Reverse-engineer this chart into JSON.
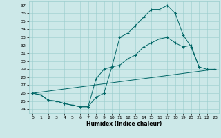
{
  "xlabel": "Humidex (Indice chaleur)",
  "xlim": [
    -0.5,
    23.5
  ],
  "ylim": [
    23.5,
    37.5
  ],
  "yticks": [
    24,
    25,
    26,
    27,
    28,
    29,
    30,
    31,
    32,
    33,
    34,
    35,
    36,
    37
  ],
  "xticks": [
    0,
    1,
    2,
    3,
    4,
    5,
    6,
    7,
    8,
    9,
    10,
    11,
    12,
    13,
    14,
    15,
    16,
    17,
    18,
    19,
    20,
    21,
    22,
    23
  ],
  "line_color": "#006666",
  "bg_color": "#cce8e8",
  "grid_color": "#99cccc",
  "curve1_x": [
    0,
    1,
    2,
    3,
    4,
    5,
    6,
    7,
    8,
    9,
    10,
    11,
    12,
    13,
    14,
    15,
    16,
    17,
    18,
    19,
    20,
    21
  ],
  "curve1_y": [
    26.0,
    25.8,
    25.1,
    25.0,
    24.7,
    24.5,
    24.3,
    24.3,
    27.8,
    29.0,
    29.3,
    33.0,
    33.5,
    34.5,
    35.5,
    36.5,
    36.5,
    37.0,
    36.0,
    33.3,
    31.8,
    29.3
  ],
  "curve2_x": [
    0,
    1,
    2,
    3,
    4,
    5,
    6,
    7,
    8,
    9,
    10,
    11,
    12,
    13,
    14,
    15,
    16,
    17,
    18,
    19,
    20,
    21,
    22,
    23
  ],
  "curve2_y": [
    26.0,
    25.8,
    25.1,
    25.0,
    24.7,
    24.5,
    24.3,
    24.3,
    25.5,
    26.0,
    29.3,
    29.5,
    30.3,
    30.8,
    31.8,
    32.3,
    32.8,
    33.0,
    32.3,
    31.8,
    32.0,
    29.3,
    29.0,
    29.0
  ],
  "line3_x": [
    0,
    23
  ],
  "line3_y": [
    26.0,
    29.0
  ]
}
